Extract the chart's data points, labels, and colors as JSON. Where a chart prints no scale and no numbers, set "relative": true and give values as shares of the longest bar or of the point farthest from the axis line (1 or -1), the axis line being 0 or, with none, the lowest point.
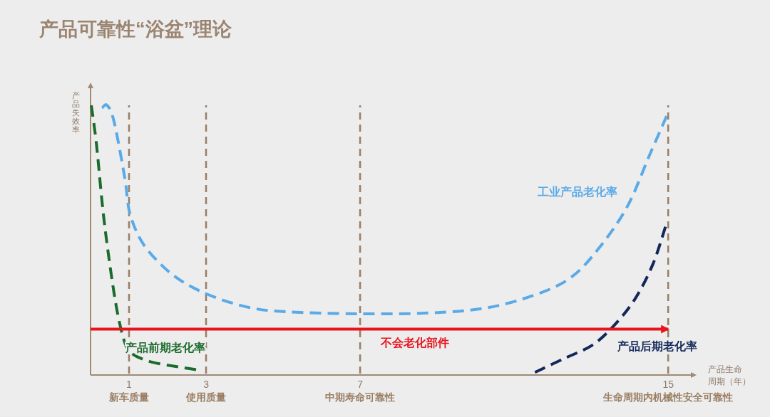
{
  "chart_data": {
    "type": "line",
    "title": "产品可靠性“浴盆”理论",
    "xlabel": "产品生命周期（年）",
    "ylabel": "产品失效率",
    "relative": true,
    "xlim": [
      0,
      15.7
    ],
    "xticks": [
      1,
      3,
      7,
      15
    ],
    "line_style": "dashed",
    "legend": false,
    "series": [
      {
        "name": "工业产品老化率",
        "color": "#5aaae8",
        "x": [
          0.3,
          0.43,
          0.61,
          0.89,
          1.02,
          1.35,
          1.9,
          2.46,
          3.2,
          4.13,
          5.06,
          6.9,
          8.76,
          10.24,
          11.5,
          12.46,
          13.2,
          13.94,
          14.5,
          14.96
        ],
        "values": [
          0.99,
          1.0,
          0.94,
          0.73,
          0.6,
          0.49,
          0.4,
          0.34,
          0.29,
          0.25,
          0.235,
          0.227,
          0.23,
          0.248,
          0.295,
          0.36,
          0.47,
          0.625,
          0.81,
          0.96
        ]
      },
      {
        "name": "产品前期老化率",
        "color": "#1b6b2c",
        "x": [
          0.02,
          0.15,
          0.33,
          0.52,
          0.7,
          0.89,
          1.07,
          1.54,
          2.28,
          2.74
        ],
        "values": [
          1.0,
          0.86,
          0.6,
          0.39,
          0.23,
          0.12,
          0.08,
          0.05,
          0.03,
          0.02
        ]
      },
      {
        "name": "产品后期老化率",
        "color": "#13285a",
        "x": [
          11.54,
          12.28,
          13.02,
          13.57,
          14.13,
          14.6,
          14.93
        ],
        "values": [
          0.01,
          0.06,
          0.11,
          0.18,
          0.28,
          0.41,
          0.55
        ]
      },
      {
        "name": "不会老化部件",
        "color": "#e8141c",
        "line_style": "solid",
        "x": [
          0,
          15
        ],
        "values": [
          0.17,
          0.17
        ]
      }
    ],
    "ref_lines": [
      {
        "axis": "x",
        "value": 1,
        "label": "新车质量",
        "color": "#9a7e63",
        "line_style": "dashed"
      },
      {
        "axis": "x",
        "value": 3,
        "label": "使用质量",
        "color": "#9a7e63",
        "line_style": "dashed"
      },
      {
        "axis": "x",
        "value": 7,
        "label": "中期寿命可靠性",
        "color": "#9a7e63",
        "line_style": "dashed"
      },
      {
        "axis": "x",
        "value": 15,
        "label": "生命周期内机械性安全可靠性",
        "color": "#9a7e63",
        "line_style": "dashed"
      }
    ]
  }
}
